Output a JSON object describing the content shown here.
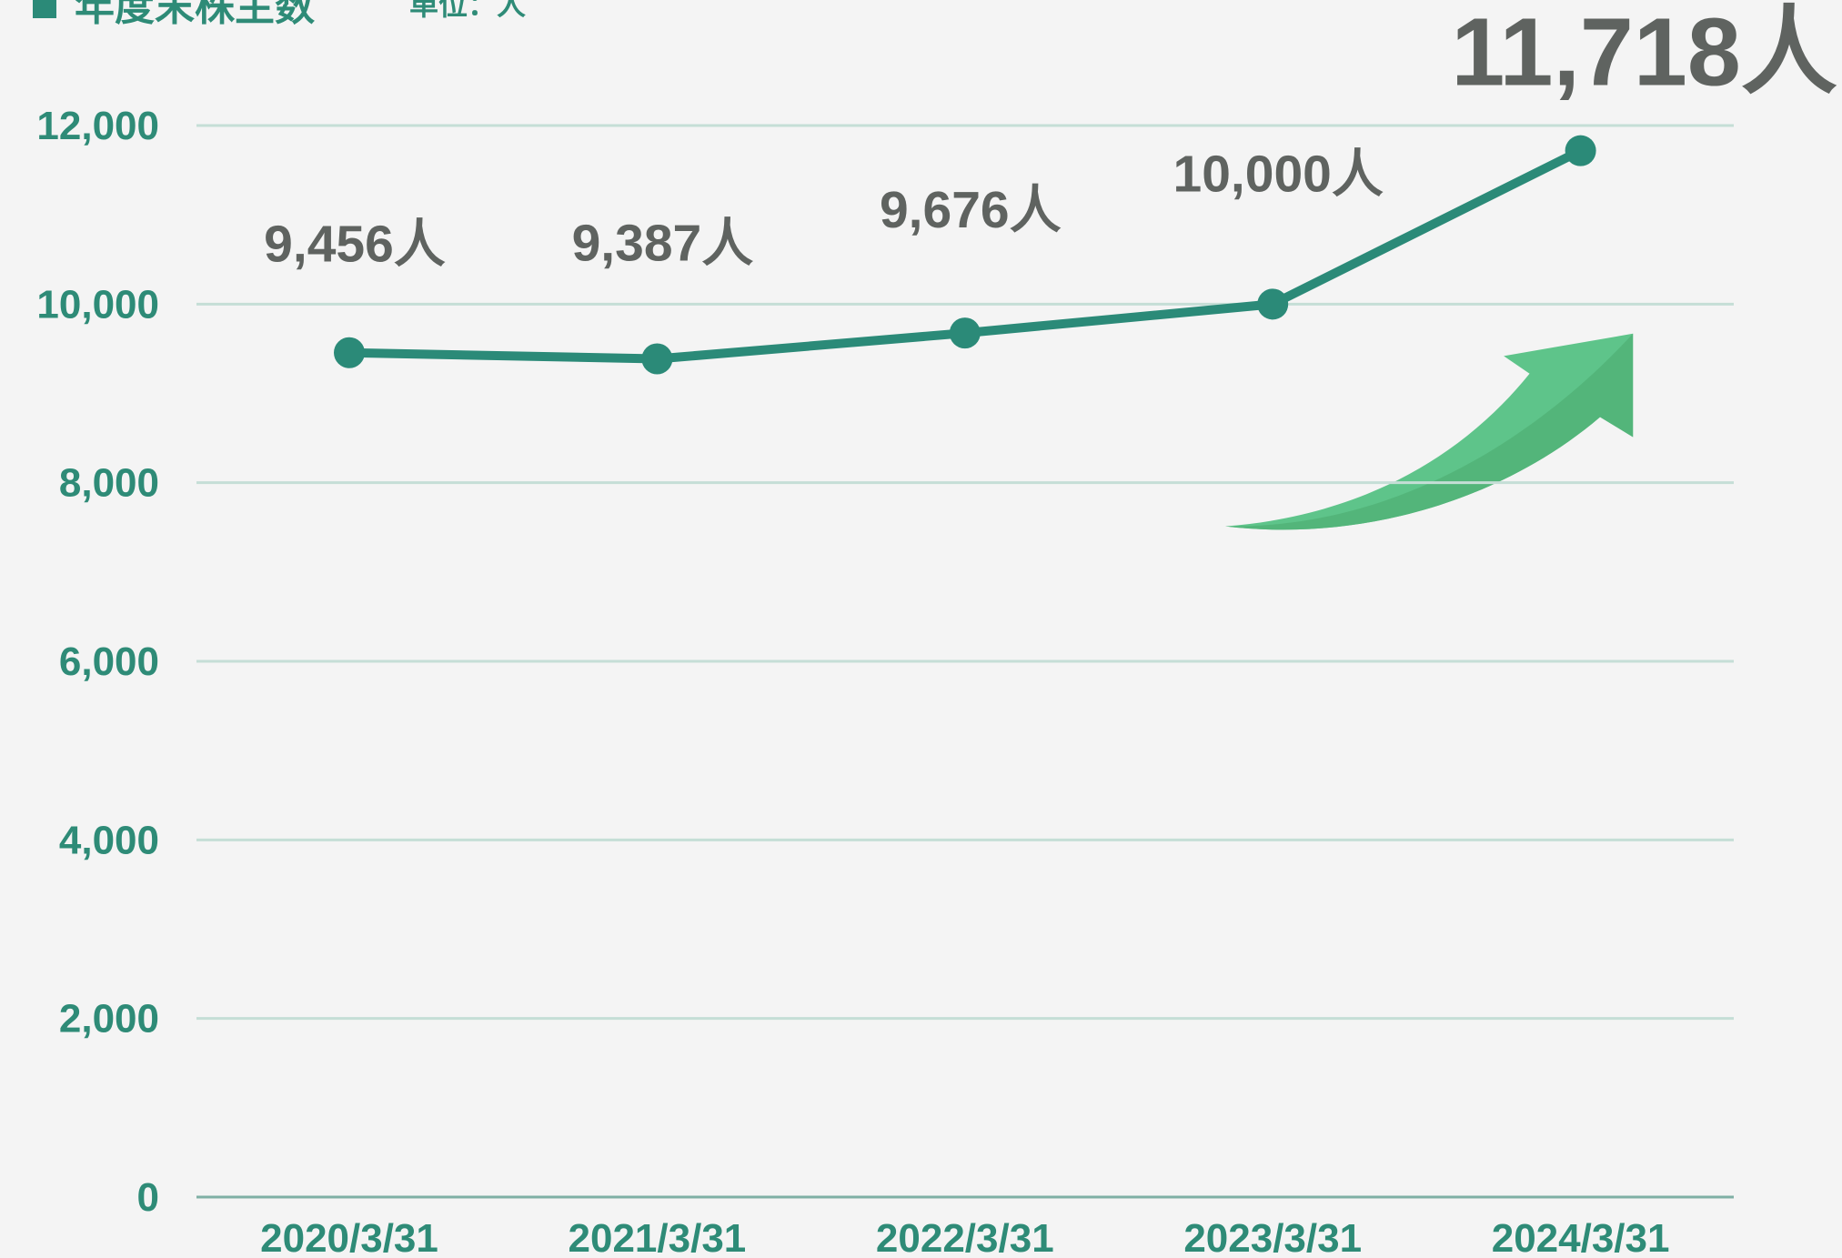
{
  "chart_data": {
    "type": "line",
    "title": "年度末株主数",
    "subtitle": "単位：人",
    "categories": [
      "2020/3/31",
      "2021/3/31",
      "2022/3/31",
      "2023/3/31",
      "2024/3/31"
    ],
    "series": [
      {
        "name": "年度末株主数",
        "color": "#2b8a78",
        "values": [
          9456,
          9387,
          9676,
          10000,
          11718
        ],
        "value_labels": [
          "9,456人",
          "9,387人",
          "9,676人",
          "10,000人",
          "11,718人"
        ]
      }
    ],
    "ylim": [
      0,
      12000
    ],
    "yticks": [
      0,
      {
        "value": 2000,
        "label": "2,000"
      },
      {
        "value": 4000,
        "label": "4,000"
      },
      {
        "value": 6000,
        "label": "6,000"
      },
      {
        "value": 8000,
        "label": "8,000"
      },
      {
        "value": 10000,
        "label": "10,000"
      },
      {
        "value": 12000,
        "label": "12,000"
      }
    ],
    "grid": true
  }
}
